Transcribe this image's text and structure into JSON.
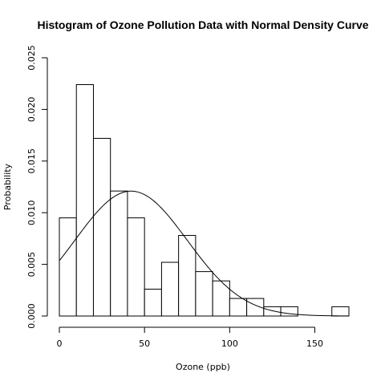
{
  "chart_data": {
    "type": "histogram",
    "title": "Histogram of Ozone Pollution Data with Normal Density Curve",
    "xlabel": "Ozone (ppb)",
    "ylabel": "Probability",
    "xlim": [
      0,
      170
    ],
    "ylim": [
      0,
      0.025
    ],
    "x_ticks": [
      0,
      50,
      100,
      150
    ],
    "x_tick_labels": [
      "0",
      "50",
      "100",
      "150"
    ],
    "y_ticks": [
      0,
      0.005,
      0.01,
      0.015,
      0.02,
      0.025
    ],
    "y_tick_labels": [
      "0.000",
      "0.005",
      "0.010",
      "0.015",
      "0.020",
      "0.025"
    ],
    "bins": [
      {
        "start": 0,
        "end": 10,
        "density": 0.0095
      },
      {
        "start": 10,
        "end": 20,
        "density": 0.0224
      },
      {
        "start": 20,
        "end": 30,
        "density": 0.0172
      },
      {
        "start": 30,
        "end": 40,
        "density": 0.0121
      },
      {
        "start": 40,
        "end": 50,
        "density": 0.0095
      },
      {
        "start": 50,
        "end": 60,
        "density": 0.0026
      },
      {
        "start": 60,
        "end": 70,
        "density": 0.0052
      },
      {
        "start": 70,
        "end": 80,
        "density": 0.0078
      },
      {
        "start": 80,
        "end": 90,
        "density": 0.0043
      },
      {
        "start": 90,
        "end": 100,
        "density": 0.0034
      },
      {
        "start": 100,
        "end": 110,
        "density": 0.0017
      },
      {
        "start": 110,
        "end": 120,
        "density": 0.0017
      },
      {
        "start": 120,
        "end": 130,
        "density": 0.0009
      },
      {
        "start": 130,
        "end": 140,
        "density": 0.0009
      },
      {
        "start": 140,
        "end": 150,
        "density": 0
      },
      {
        "start": 150,
        "end": 160,
        "density": 0
      },
      {
        "start": 160,
        "end": 170,
        "density": 0.0009
      }
    ],
    "normal_curve": {
      "mean": 42.1,
      "sd": 33.0,
      "x_range": [
        0,
        170
      ]
    }
  }
}
